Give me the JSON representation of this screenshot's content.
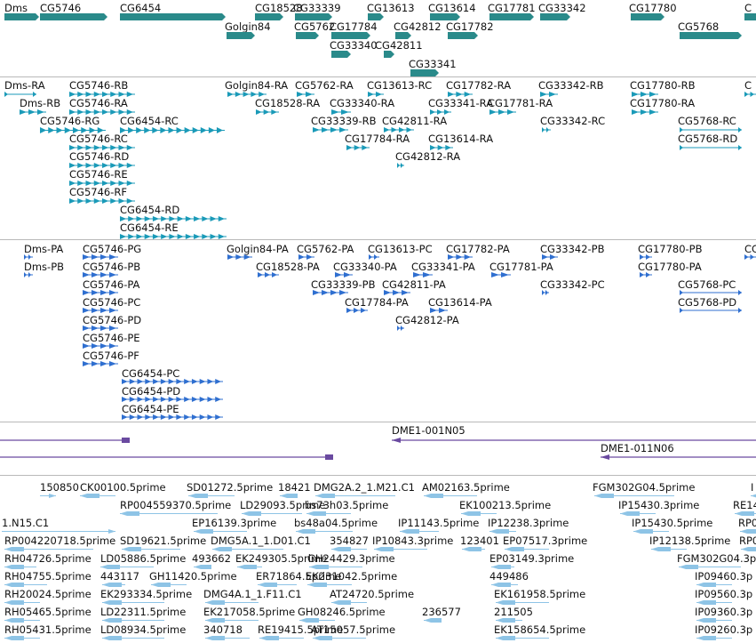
{
  "colors": {
    "gene": "#2a8a8a",
    "transcript": "#1a9ab8",
    "protein": "#2f6fd0",
    "bac": "#6a4aa0",
    "est": "#8ec4e6",
    "separator": "#b9b9b9"
  },
  "tracks": {
    "genes": [
      {
        "label": "Dms"
      },
      {
        "label": "CG5746"
      },
      {
        "label": "CG6454"
      },
      {
        "label": "CG18528"
      },
      {
        "label": "CG33339"
      },
      {
        "label": "CG13613"
      },
      {
        "label": "CG13614"
      },
      {
        "label": "CG17781"
      },
      {
        "label": "CG33342"
      },
      {
        "label": "CG17780"
      },
      {
        "label": "C"
      },
      {
        "label": "Golgin84"
      },
      {
        "label": "CG5762"
      },
      {
        "label": "CG17784"
      },
      {
        "label": "CG42812"
      },
      {
        "label": "CG17782"
      },
      {
        "label": "CG5768"
      },
      {
        "label": "CG33340"
      },
      {
        "label": "CG42811"
      },
      {
        "label": "CG33341"
      }
    ],
    "transcripts": [
      {
        "label": "Dms-RA"
      },
      {
        "label": "CG5746-RB"
      },
      {
        "label": "Golgin84-RA"
      },
      {
        "label": "CG5762-RA"
      },
      {
        "label": "CG13613-RC"
      },
      {
        "label": "CG17782-RA"
      },
      {
        "label": "CG33342-RB"
      },
      {
        "label": "CG17780-RB"
      },
      {
        "label": "C"
      },
      {
        "label": "Dms-RB"
      },
      {
        "label": "CG5746-RA"
      },
      {
        "label": "CG18528-RA"
      },
      {
        "label": "CG33340-RA"
      },
      {
        "label": "CG33341-RA"
      },
      {
        "label": "CG17781-RA"
      },
      {
        "label": "CG17780-RA"
      },
      {
        "label": "CG5746-RG"
      },
      {
        "label": "CG6454-RC"
      },
      {
        "label": "CG33339-RB"
      },
      {
        "label": "CG42811-RA"
      },
      {
        "label": "CG33342-RC"
      },
      {
        "label": "CG5768-RC"
      },
      {
        "label": "CG5746-RC"
      },
      {
        "label": "CG17784-RA"
      },
      {
        "label": "CG13614-RA"
      },
      {
        "label": "CG5768-RD"
      },
      {
        "label": "CG5746-RD"
      },
      {
        "label": "CG42812-RA"
      },
      {
        "label": "CG5746-RE"
      },
      {
        "label": "CG5746-RF"
      },
      {
        "label": "CG6454-RD"
      },
      {
        "label": "CG6454-RE"
      }
    ],
    "proteins": [
      {
        "label": "Dms-PA"
      },
      {
        "label": "CG5746-PG"
      },
      {
        "label": "Golgin84-PA"
      },
      {
        "label": "CG5762-PA"
      },
      {
        "label": "CG13613-PC"
      },
      {
        "label": "CG17782-PA"
      },
      {
        "label": "CG33342-PB"
      },
      {
        "label": "CG17780-PB"
      },
      {
        "label": "CG"
      },
      {
        "label": "Dms-PB"
      },
      {
        "label": "CG5746-PB"
      },
      {
        "label": "CG18528-PA"
      },
      {
        "label": "CG33340-PA"
      },
      {
        "label": "CG33341-PA"
      },
      {
        "label": "CG17781-PA"
      },
      {
        "label": "CG17780-PA"
      },
      {
        "label": "CG5746-PA"
      },
      {
        "label": "CG33339-PB"
      },
      {
        "label": "CG42811-PA"
      },
      {
        "label": "CG33342-PC"
      },
      {
        "label": "CG5768-PC"
      },
      {
        "label": "CG5746-PC"
      },
      {
        "label": "CG17784-PA"
      },
      {
        "label": "CG13614-PA"
      },
      {
        "label": "CG5768-PD"
      },
      {
        "label": "CG5746-PD"
      },
      {
        "label": "CG42812-PA"
      },
      {
        "label": "CG5746-PE"
      },
      {
        "label": "CG5746-PF"
      },
      {
        "label": "CG6454-PC"
      },
      {
        "label": "CG6454-PD"
      },
      {
        "label": "CG6454-PE"
      }
    ],
    "bac_clones": [
      {
        "label": "DME1-001N05"
      },
      {
        "label": "DME1-011N06"
      }
    ],
    "ests": [
      {
        "label": "150850"
      },
      {
        "label": "CK00100.5prime"
      },
      {
        "label": "SD01272.5prime"
      },
      {
        "label": "18421"
      },
      {
        "label": "DMG2A.2_1.M21.C1"
      },
      {
        "label": "AM02163.5prime"
      },
      {
        "label": "FGM302G04.5prime"
      },
      {
        "label": "I"
      },
      {
        "label": "RP004559370.5prime"
      },
      {
        "label": "LD29093.5prime"
      },
      {
        "label": "bs73h03.5prime"
      },
      {
        "label": "EK100213.5prime"
      },
      {
        "label": "IP15430.3prime"
      },
      {
        "label": "RE14"
      },
      {
        "label": "1.N15.C1"
      },
      {
        "label": "EP16139.3prime"
      },
      {
        "label": "bs48a04.5prime"
      },
      {
        "label": "IP11143.5prime"
      },
      {
        "label": "IP12238.3prime"
      },
      {
        "label": "IP15430.5prime"
      },
      {
        "label": "RP0"
      },
      {
        "label": "RP004220718.5prime"
      },
      {
        "label": "SD19621.5prime"
      },
      {
        "label": "DMG5A.1_1.D01.C1"
      },
      {
        "label": "354827"
      },
      {
        "label": "IP10843.3prime"
      },
      {
        "label": "123401"
      },
      {
        "label": "EP07517.3prime"
      },
      {
        "label": "IP12138.5prime"
      },
      {
        "label": "RP0"
      },
      {
        "label": "RH04726.5prime"
      },
      {
        "label": "LD05886.5prime"
      },
      {
        "label": "493662"
      },
      {
        "label": "EK249305.5prime"
      },
      {
        "label": "GH24429.3prime"
      },
      {
        "label": "EP03149.3prime"
      },
      {
        "label": "FGM302G04.3p"
      },
      {
        "label": "RH04755.5prime"
      },
      {
        "label": "443117"
      },
      {
        "label": "GH11420.5prime"
      },
      {
        "label": "ER71864.5prime"
      },
      {
        "label": "EK231042.5prime"
      },
      {
        "label": "449486"
      },
      {
        "label": "IP09460.3p"
      },
      {
        "label": "RH20024.5prime"
      },
      {
        "label": "EK293334.5prime"
      },
      {
        "label": "DMG4A.1_1.F11.C1"
      },
      {
        "label": "AT24720.5prime"
      },
      {
        "label": "EK161958.5prime"
      },
      {
        "label": "IP09560.3p"
      },
      {
        "label": "RH05465.5prime"
      },
      {
        "label": "LD22311.5prime"
      },
      {
        "label": "EK217058.5prime"
      },
      {
        "label": "GH08246.5prime"
      },
      {
        "label": "236577"
      },
      {
        "label": "211505"
      },
      {
        "label": "IP09360.3p"
      },
      {
        "label": "RH05431.5prime"
      },
      {
        "label": "LD08934.5prime"
      },
      {
        "label": "340718"
      },
      {
        "label": "RE19415.5prime"
      },
      {
        "label": "AT15057.5prime"
      },
      {
        "label": "EK158654.5prime"
      },
      {
        "label": "IP09260.3p"
      }
    ]
  }
}
